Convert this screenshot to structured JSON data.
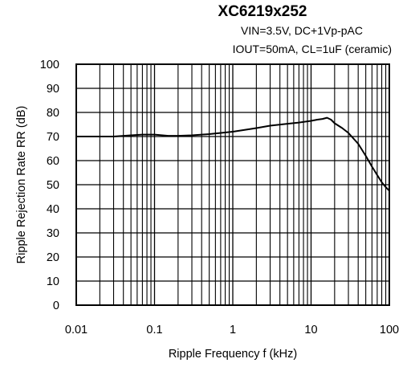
{
  "chart_data": {
    "type": "line",
    "title": "XC6219x252",
    "subtitle_lines": [
      "VIN=3.5V, DC+1Vp-pAC",
      "IOUT=50mA, CL=1uF (ceramic)"
    ],
    "xlabel": "Ripple Frequency f (kHz)",
    "ylabel": "Ripple Rejection Rate RR (dB)",
    "x_scale": "log",
    "xlim": [
      0.01,
      100
    ],
    "ylim": [
      0,
      100
    ],
    "x_ticks": [
      0.01,
      0.1,
      1,
      10,
      100
    ],
    "x_tick_labels": [
      "0.01",
      "0.1",
      "1",
      "10",
      "100"
    ],
    "y_ticks": [
      0,
      10,
      20,
      30,
      40,
      50,
      60,
      70,
      80,
      90,
      100
    ],
    "y_tick_labels": [
      "0",
      "10",
      "20",
      "30",
      "40",
      "50",
      "60",
      "70",
      "80",
      "90",
      "100"
    ],
    "grid": true,
    "series": [
      {
        "x": [
          0.01,
          0.015,
          0.02,
          0.03,
          0.05,
          0.07,
          0.1,
          0.15,
          0.2,
          0.3,
          0.5,
          1,
          2,
          3,
          5,
          7,
          10,
          12,
          14,
          16,
          18,
          20,
          25,
          30,
          40,
          50,
          60,
          70,
          80,
          90,
          100
        ],
        "y": [
          70,
          70,
          70,
          70,
          70.5,
          70.8,
          70.8,
          70.3,
          70.3,
          70.5,
          71,
          72,
          73.5,
          74.5,
          75.3,
          75.8,
          76.5,
          77,
          77.3,
          77.8,
          77,
          75.5,
          73.5,
          71.5,
          67,
          62,
          57.5,
          54,
          51,
          49,
          47.5
        ],
        "color": "#000000"
      }
    ]
  }
}
